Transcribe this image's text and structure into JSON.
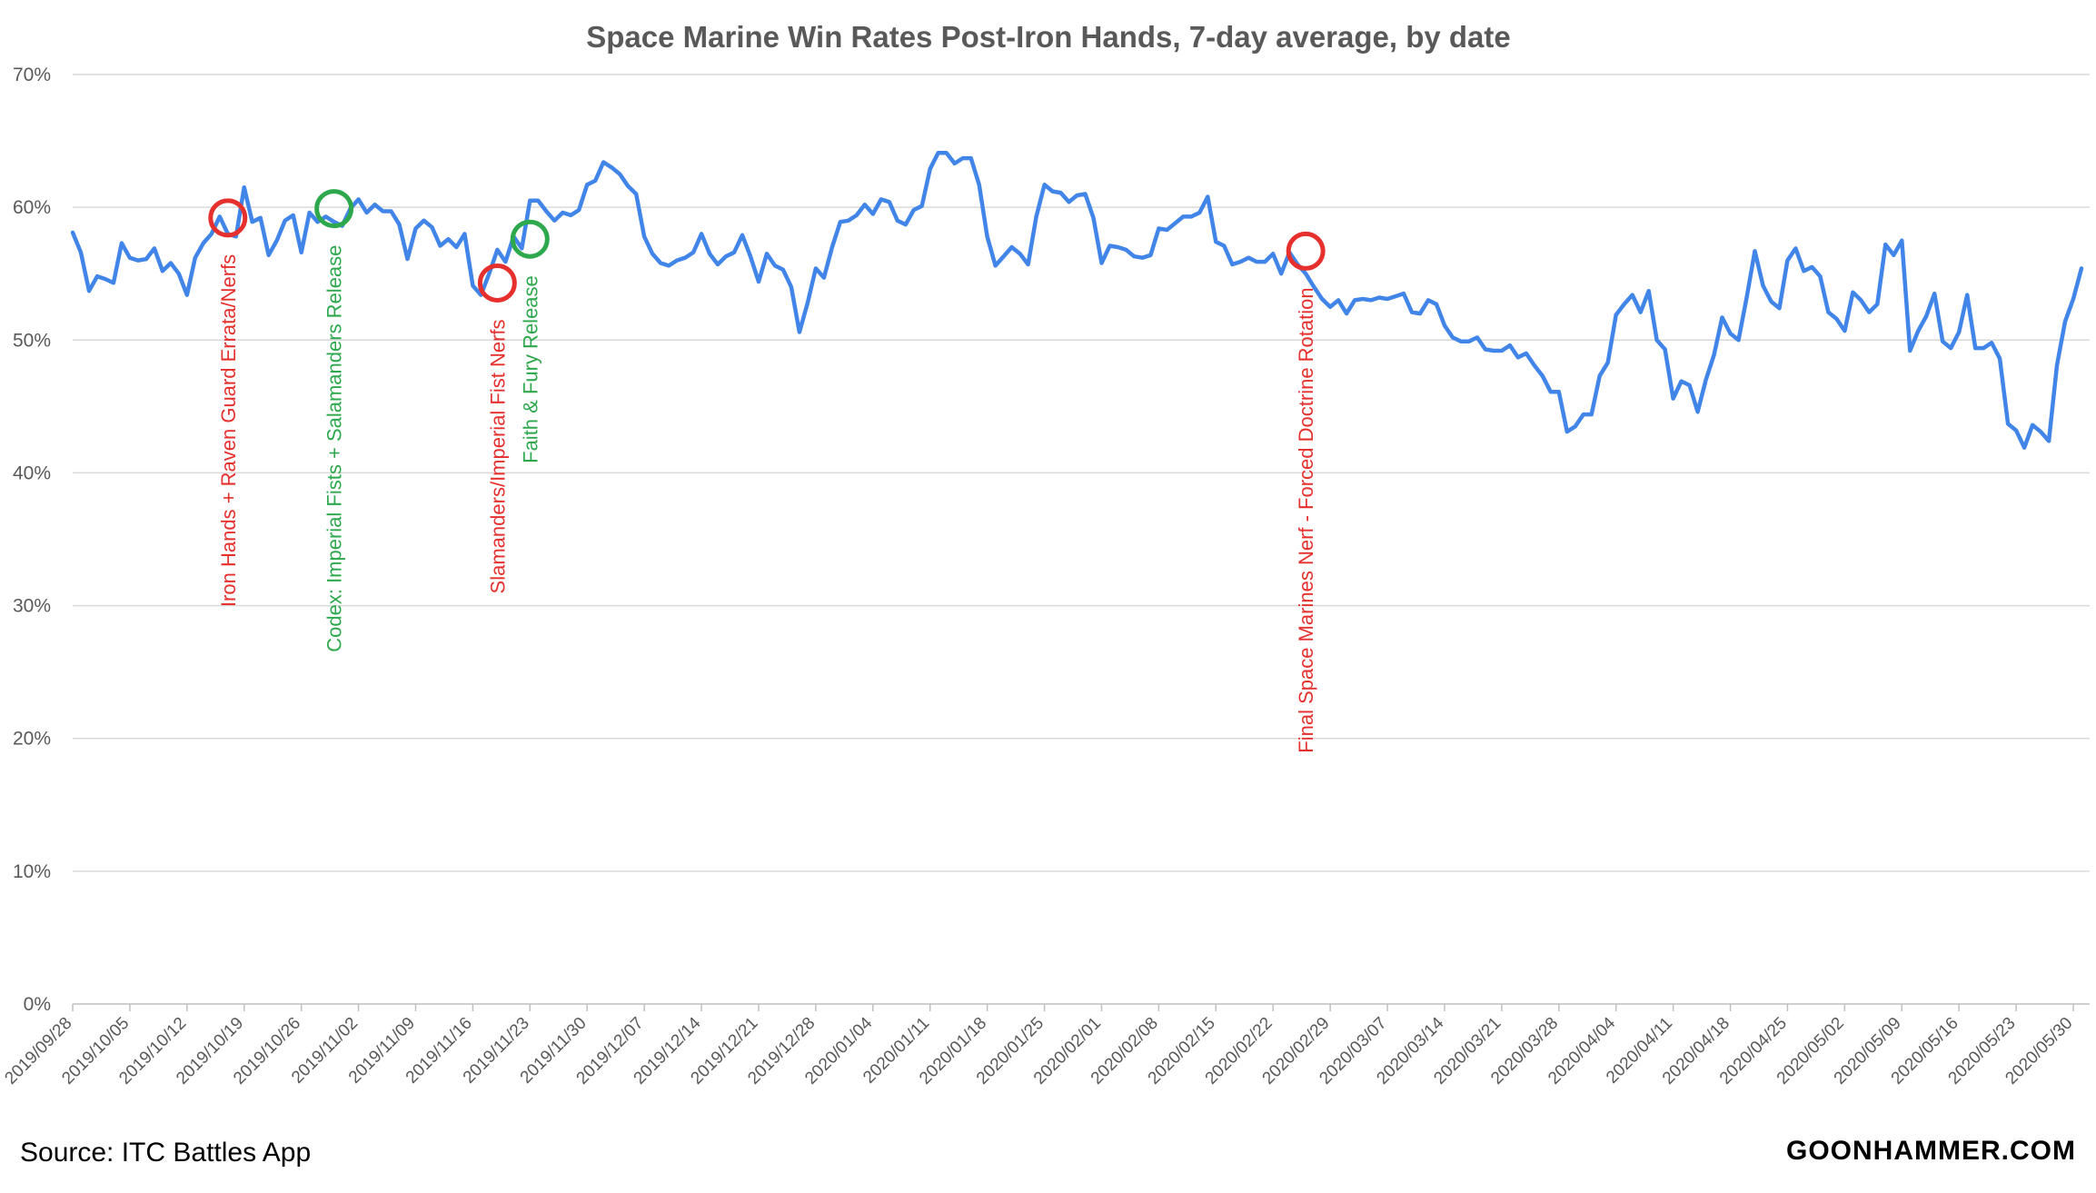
{
  "chart_data": {
    "type": "line",
    "title": "Space Marine Win Rates Post-Iron Hands, 7-day average, by date",
    "xlabel": "",
    "ylabel": "",
    "ylim": [
      0,
      0.7
    ],
    "yticks": [
      "0%",
      "10%",
      "20%",
      "30%",
      "40%",
      "50%",
      "60%",
      "70%"
    ],
    "x_start": "2019/09/28",
    "x_end": "2020/06/01",
    "x_tick_labels": [
      "2019/09/28",
      "2019/10/05",
      "2019/10/12",
      "2019/10/19",
      "2019/10/26",
      "2019/11/02",
      "2019/11/09",
      "2019/11/16",
      "2019/11/23",
      "2019/11/30",
      "2019/12/07",
      "2019/12/14",
      "2019/12/21",
      "2019/12/28",
      "2020/01/04",
      "2020/01/11",
      "2020/01/18",
      "2020/01/25",
      "2020/02/01",
      "2020/02/08",
      "2020/02/15",
      "2020/02/22",
      "2020/02/29",
      "2020/03/07",
      "2020/03/14",
      "2020/03/21",
      "2020/03/28",
      "2020/04/04",
      "2020/04/11",
      "2020/04/18",
      "2020/04/25",
      "2020/05/02",
      "2020/05/09",
      "2020/05/16",
      "2020/05/23",
      "2020/05/30"
    ],
    "grid": true,
    "series": [
      {
        "color": "#4285e8",
        "values": [
          0.581,
          0.566,
          0.537,
          0.548,
          0.546,
          0.543,
          0.573,
          0.562,
          0.56,
          0.561,
          0.569,
          0.552,
          0.558,
          0.55,
          0.534,
          0.562,
          0.573,
          0.58,
          0.593,
          0.58,
          0.578,
          0.615,
          0.589,
          0.592,
          0.564,
          0.575,
          0.59,
          0.594,
          0.566,
          0.596,
          0.589,
          0.593,
          0.589,
          0.586,
          0.599,
          0.606,
          0.596,
          0.602,
          0.597,
          0.597,
          0.587,
          0.561,
          0.584,
          0.59,
          0.585,
          0.571,
          0.576,
          0.57,
          0.58,
          0.541,
          0.534,
          0.55,
          0.568,
          0.559,
          0.578,
          0.569,
          0.605,
          0.605,
          0.597,
          0.59,
          0.596,
          0.594,
          0.598,
          0.617,
          0.62,
          0.634,
          0.63,
          0.625,
          0.616,
          0.61,
          0.578,
          0.565,
          0.558,
          0.556,
          0.56,
          0.562,
          0.566,
          0.58,
          0.565,
          0.557,
          0.563,
          0.566,
          0.579,
          0.563,
          0.544,
          0.565,
          0.556,
          0.553,
          0.54,
          0.506,
          0.528,
          0.554,
          0.547,
          0.57,
          0.589,
          0.59,
          0.594,
          0.602,
          0.595,
          0.606,
          0.604,
          0.59,
          0.587,
          0.598,
          0.601,
          0.629,
          0.641,
          0.641,
          0.633,
          0.637,
          0.637,
          0.617,
          0.578,
          0.556,
          0.563,
          0.57,
          0.565,
          0.557,
          0.593,
          0.617,
          0.612,
          0.611,
          0.604,
          0.609,
          0.61,
          0.592,
          0.558,
          0.571,
          0.57,
          0.568,
          0.563,
          0.562,
          0.564,
          0.584,
          0.583,
          0.588,
          0.593,
          0.593,
          0.596,
          0.608,
          0.574,
          0.571,
          0.557,
          0.559,
          0.562,
          0.559,
          0.559,
          0.565,
          0.55,
          0.566,
          0.557,
          0.55,
          0.54,
          0.531,
          0.525,
          0.53,
          0.52,
          0.53,
          0.531,
          0.53,
          0.532,
          0.531,
          0.533,
          0.535,
          0.521,
          0.52,
          0.53,
          0.527,
          0.511,
          0.502,
          0.499,
          0.499,
          0.502,
          0.493,
          0.492,
          0.492,
          0.496,
          0.487,
          0.49,
          0.481,
          0.473,
          0.461,
          0.461,
          0.431,
          0.435,
          0.444,
          0.444,
          0.473,
          0.483,
          0.519,
          0.527,
          0.534,
          0.521,
          0.537,
          0.5,
          0.493,
          0.456,
          0.469,
          0.466,
          0.446,
          0.47,
          0.489,
          0.517,
          0.505,
          0.5,
          0.532,
          0.567,
          0.541,
          0.529,
          0.524,
          0.56,
          0.569,
          0.552,
          0.555,
          0.548,
          0.521,
          0.516,
          0.507,
          0.536,
          0.53,
          0.521,
          0.527,
          0.572,
          0.564,
          0.575,
          0.492,
          0.507,
          0.518,
          0.535,
          0.499,
          0.494,
          0.506,
          0.534,
          0.494,
          0.494,
          0.498,
          0.486,
          0.437,
          0.432,
          0.419,
          0.436,
          0.431,
          0.424,
          0.481,
          0.514,
          0.531,
          0.554
        ]
      }
    ],
    "annotations": [
      {
        "text": "Iron Hands + Raven Guard Errata/Nerfs",
        "date": "2019/10/17",
        "value": 0.592,
        "color": "#e5302d"
      },
      {
        "text": "Codex: Imperial Fists + Salamanders Release",
        "date": "2019/10/30",
        "value": 0.599,
        "color": "#2ea84c"
      },
      {
        "text": "Slamanders/Imperial Fist Nerfs",
        "date": "2019/11/19",
        "value": 0.543,
        "color": "#e5302d"
      },
      {
        "text": "Faith & Fury Release",
        "date": "2019/11/23",
        "value": 0.576,
        "color": "#2ea84c"
      },
      {
        "text": "Final Space Marines Nerf - Forced Doctrine Rotation",
        "date": "2020/02/26",
        "value": 0.567,
        "color": "#e5302d"
      }
    ]
  },
  "footer": {
    "source": "Source: ITC Battles App",
    "brand": "GOONHAMMER.COM"
  }
}
